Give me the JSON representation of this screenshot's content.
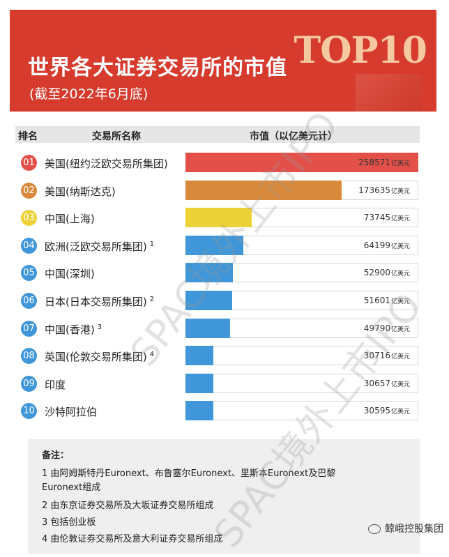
{
  "header": {
    "title": "世界各大证券交易所的市值",
    "subtitle": "(截至2022年6月底)",
    "badge": "TOP10"
  },
  "table_header": {
    "rank": "排名",
    "exchange": "交易所名称",
    "market_cap": "市值（以亿美元计）"
  },
  "chart_data": {
    "type": "bar",
    "orientation": "horizontal",
    "title": "世界各大证券交易所的市值",
    "subtitle": "(截至2022年6月底)",
    "xlim": [
      0,
      258571
    ],
    "unit": "亿美元",
    "categories": [
      "美国(纽约泛欧交易所集团)",
      "美国(纳斯达克)",
      "中国(上海)",
      "欧洲(泛欧交易所集团)",
      "中国(深圳)",
      "日本(日本交易所集团)",
      "中国(香港)",
      "英国(伦敦交易所集团)",
      "印度",
      "沙特阿拉伯"
    ],
    "ranks": [
      "01",
      "02",
      "03",
      "04",
      "05",
      "06",
      "07",
      "08",
      "09",
      "10"
    ],
    "footnotes": [
      "",
      "",
      "",
      "1",
      "",
      "2",
      "3",
      "4",
      "",
      ""
    ],
    "values": [
      258571,
      173635,
      73745,
      64199,
      52900,
      51601,
      49790,
      30716,
      30657,
      30595
    ],
    "colors": [
      "#e3504a",
      "#d9893b",
      "#ecd137",
      "#3f97d9",
      "#3f97d9",
      "#3f97d9",
      "#3f97d9",
      "#3f97d9",
      "#3f97d9",
      "#3f97d9"
    ]
  },
  "notes": {
    "heading": "备注：",
    "lines": [
      "1 由阿姆斯特丹Euronext、布鲁塞尔Euronext、里斯本Euronext及巴黎",
      "Euronext组成",
      "2 由东京证券交易所及大坂证券交易所组成",
      "3 包括创业板",
      "4 由伦敦证券交易所及意大利证券交易所组成"
    ]
  },
  "brand": "鲸峨控股集团",
  "watermark": "SPAC境外上市IPO",
  "icons": {
    "brand": "wechat-icon"
  }
}
